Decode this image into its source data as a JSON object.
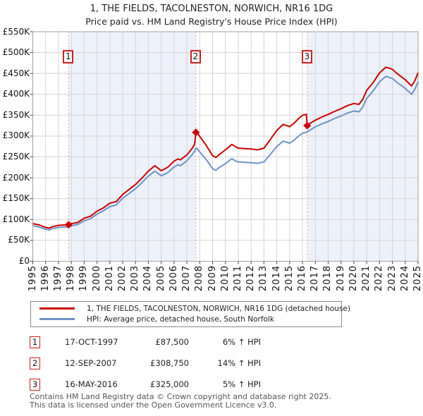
{
  "title": {
    "line1": "1, THE FIELDS, TACOLNESTON, NORWICH, NR16 1DG",
    "line2": "Price paid vs. HM Land Registry's House Price Index (HPI)"
  },
  "colors": {
    "property_line": "#cc0000",
    "hpi_line": "#6d94c4",
    "grid": "#d4d4d4",
    "border": "#a0a0a0",
    "band": "#edf1fa",
    "sale_dotted_line": "#f28080",
    "marker": "#cc0000",
    "sale_box_border": "#cc2222"
  },
  "axes": {
    "y_ticks": [
      {
        "label": "£0",
        "value": 0
      },
      {
        "label": "£50K",
        "value": 50000
      },
      {
        "label": "£100K",
        "value": 100000
      },
      {
        "label": "£150K",
        "value": 150000
      },
      {
        "label": "£200K",
        "value": 200000
      },
      {
        "label": "£250K",
        "value": 250000
      },
      {
        "label": "£300K",
        "value": 300000
      },
      {
        "label": "£350K",
        "value": 350000
      },
      {
        "label": "£400K",
        "value": 400000
      },
      {
        "label": "£450K",
        "value": 450000
      },
      {
        "label": "£500K",
        "value": 500000
      },
      {
        "label": "£550K",
        "value": 550000
      }
    ],
    "x_ticks": [
      1995,
      1996,
      1997,
      1998,
      1999,
      2000,
      2001,
      2002,
      2003,
      2004,
      2005,
      2006,
      2007,
      2008,
      2009,
      2010,
      2011,
      2012,
      2013,
      2014,
      2015,
      2016,
      2017,
      2018,
      2019,
      2020,
      2021,
      2022,
      2023,
      2024,
      2025
    ]
  },
  "chart_data": {
    "type": "line",
    "title": "1, THE FIELDS, TACOLNESTON, NORWICH, NR16 1DG — Price paid vs. HPI",
    "x_range": [
      1995,
      2025
    ],
    "y_range": [
      0,
      550000
    ],
    "y_tick_step": 50000,
    "x": [
      1995.0,
      1995.5,
      1996.0,
      1996.3,
      1996.5,
      1997.0,
      1997.5,
      1997.79,
      1998.0,
      1998.5,
      1999.0,
      1999.5,
      2000.0,
      2000.5,
      2001.0,
      2001.5,
      2002.0,
      2002.5,
      2003.0,
      2003.5,
      2004.0,
      2004.5,
      2005.0,
      2005.5,
      2006.0,
      2006.3,
      2006.5,
      2007.0,
      2007.4,
      2007.6,
      2007.7,
      2007.8,
      2008.0,
      2008.5,
      2009.0,
      2009.25,
      2009.5,
      2010.0,
      2010.5,
      2010.8,
      2011.0,
      2011.5,
      2012.0,
      2012.5,
      2013.0,
      2013.5,
      2014.0,
      2014.5,
      2015.0,
      2015.3,
      2015.7,
      2016.0,
      2016.3,
      2016.37,
      2016.5,
      2017.0,
      2017.5,
      2018.0,
      2018.5,
      2019.0,
      2019.5,
      2020.0,
      2020.4,
      2020.7,
      2021.0,
      2021.5,
      2022.0,
      2022.3,
      2022.5,
      2022.8,
      2023.0,
      2023.3,
      2023.7,
      2024.0,
      2024.3,
      2024.5,
      2024.75,
      2025.0
    ],
    "series": [
      {
        "name": "1, THE FIELDS, TACOLNESTON, NORWICH, NR16 1DG (detached house)",
        "color": "#cc0000",
        "values": [
          90000,
          87000,
          81000,
          79500,
          82500,
          86000,
          87000,
          87500,
          90000,
          93000,
          103000,
          108000,
          120000,
          128000,
          139000,
          143000,
          160000,
          172000,
          184000,
          199000,
          216000,
          229000,
          217000,
          225000,
          240000,
          245000,
          243000,
          255000,
          270000,
          280000,
          308750,
          308000,
          299000,
          278000,
          253000,
          248500,
          255000,
          267000,
          280000,
          274000,
          271000,
          270000,
          269000,
          267000,
          271000,
          292000,
          313500,
          328000,
          322500,
          329500,
          342000,
          350000,
          352000,
          325000,
          329000,
          338000,
          345500,
          352000,
          359000,
          365500,
          373000,
          378000,
          376000,
          388500,
          409500,
          428000,
          451500,
          460000,
          465000,
          462000,
          460000,
          451500,
          442000,
          435000,
          426000,
          420000,
          432500,
          451500
        ]
      },
      {
        "name": "HPI: Average price, detached house, South Norfolk",
        "color": "#6d94c4",
        "values": [
          85000,
          82000,
          76500,
          75000,
          78000,
          81000,
          82000,
          82500,
          85000,
          88000,
          97000,
          102000,
          113000,
          121000,
          131000,
          135000,
          151000,
          162000,
          174000,
          188000,
          204000,
          216000,
          205000,
          212000,
          226000,
          231000,
          229000,
          241000,
          255000,
          264000,
          271000,
          270000,
          262000,
          244000,
          222000,
          218000,
          224000,
          234000,
          246000,
          240000,
          238000,
          237000,
          236000,
          234500,
          238000,
          256000,
          275000,
          288000,
          283000,
          289000,
          300000,
          307000,
          309000,
          309500,
          313000,
          322000,
          329000,
          335000,
          342000,
          348000,
          355000,
          360000,
          358000,
          370000,
          390000,
          408000,
          430000,
          438000,
          443000,
          440000,
          438000,
          430000,
          421000,
          414000,
          406000,
          400000,
          412000,
          430000
        ]
      }
    ],
    "sales": [
      {
        "n": "1",
        "x": 1997.79,
        "price": 87500
      },
      {
        "n": "2",
        "x": 2007.7,
        "price": 308750
      },
      {
        "n": "3",
        "x": 2016.37,
        "price": 325000
      }
    ],
    "shaded_bands": [
      [
        1997.79,
        2007.7
      ],
      [
        2016.37,
        2025.0
      ]
    ],
    "legend_position": "bottom",
    "grid": true
  },
  "legend": {
    "items": [
      {
        "label": "1, THE FIELDS, TACOLNESTON, NORWICH, NR16 1DG (detached house)"
      },
      {
        "label": "HPI: Average price, detached house, South Norfolk"
      }
    ]
  },
  "table": {
    "rows": [
      {
        "num": "1",
        "date": "17-OCT-1997",
        "price": "£87,500",
        "hpi": "6% ↑ HPI"
      },
      {
        "num": "2",
        "date": "12-SEP-2007",
        "price": "£308,750",
        "hpi": "14% ↑ HPI"
      },
      {
        "num": "3",
        "date": "16-MAY-2016",
        "price": "£325,000",
        "hpi": "5% ↑ HPI"
      }
    ]
  },
  "footer": {
    "line1": "Contains HM Land Registry data © Crown copyright and database right 2025.",
    "line2": "This data is licensed under the Open Government Licence v3.0."
  }
}
